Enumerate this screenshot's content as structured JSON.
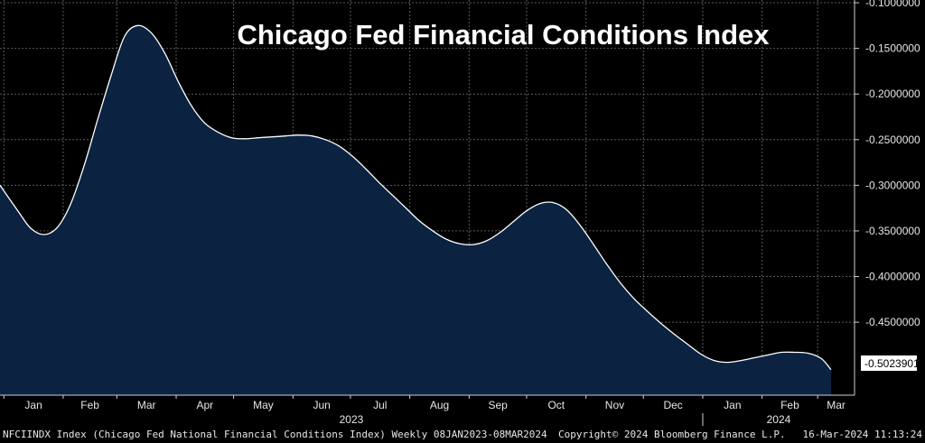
{
  "chart_data": {
    "type": "area",
    "title": "Chicago Fed Financial Conditions Index",
    "ylim": [
      -0.53,
      -0.097
    ],
    "y_ticks": [
      "-0.1000000",
      "-0.1500000",
      "-0.2000000",
      "-0.2500000",
      "-0.3000000",
      "-0.3500000",
      "-0.4000000",
      "-0.4500000"
    ],
    "last_value_label": "-0.5023901",
    "months": [
      {
        "label": "Jan",
        "m": 0
      },
      {
        "label": "Feb",
        "m": 1
      },
      {
        "label": "Mar",
        "m": 2
      },
      {
        "label": "Apr",
        "m": 3
      },
      {
        "label": "May",
        "m": 4
      },
      {
        "label": "Jun",
        "m": 5
      },
      {
        "label": "Jul",
        "m": 6
      },
      {
        "label": "Aug",
        "m": 7
      },
      {
        "label": "Sep",
        "m": 8
      },
      {
        "label": "Oct",
        "m": 9
      },
      {
        "label": "Nov",
        "m": 10
      },
      {
        "label": "Dec",
        "m": 11
      },
      {
        "label": "Jan",
        "m": 12
      },
      {
        "label": "Feb",
        "m": 13
      },
      {
        "label": "Mar",
        "m": 14
      }
    ],
    "years": [
      {
        "label": "2023",
        "m": 5.5
      },
      {
        "label": "2024",
        "m": 13.5
      }
    ],
    "series": [
      {
        "x": [
          "2022-12-30",
          "2023-01-08",
          "2023-01-15",
          "2023-01-22",
          "2023-01-29",
          "2023-02-05",
          "2023-02-12",
          "2023-02-19",
          "2023-02-26",
          "2023-03-05",
          "2023-03-12",
          "2023-03-19",
          "2023-03-26",
          "2023-04-02",
          "2023-04-09",
          "2023-04-16",
          "2023-04-23",
          "2023-04-30",
          "2023-05-07",
          "2023-05-14",
          "2023-05-21",
          "2023-05-28",
          "2023-06-04",
          "2023-06-11",
          "2023-06-18",
          "2023-06-25",
          "2023-07-02",
          "2023-07-09",
          "2023-07-16",
          "2023-07-23",
          "2023-07-30",
          "2023-08-06",
          "2023-08-13",
          "2023-08-20",
          "2023-08-27",
          "2023-09-03",
          "2023-09-10",
          "2023-09-17",
          "2023-09-24",
          "2023-10-01",
          "2023-10-08",
          "2023-10-15",
          "2023-10-22",
          "2023-10-29",
          "2023-11-05",
          "2023-11-12",
          "2023-11-19",
          "2023-11-26",
          "2023-12-03",
          "2023-12-10",
          "2023-12-17",
          "2023-12-24",
          "2023-12-31",
          "2024-01-07",
          "2024-01-14",
          "2024-01-21",
          "2024-01-28",
          "2024-02-04",
          "2024-02-11",
          "2024-02-18",
          "2024-02-25",
          "2024-03-03",
          "2024-03-08"
        ],
        "values": [
          -0.3,
          -0.327,
          -0.347,
          -0.354,
          -0.346,
          -0.32,
          -0.278,
          -0.228,
          -0.18,
          -0.137,
          -0.125,
          -0.133,
          -0.155,
          -0.186,
          -0.213,
          -0.232,
          -0.242,
          -0.248,
          -0.249,
          -0.248,
          -0.247,
          -0.246,
          -0.245,
          -0.246,
          -0.25,
          -0.257,
          -0.268,
          -0.282,
          -0.297,
          -0.311,
          -0.325,
          -0.339,
          -0.35,
          -0.359,
          -0.364,
          -0.365,
          -0.361,
          -0.352,
          -0.34,
          -0.328,
          -0.32,
          -0.319,
          -0.327,
          -0.344,
          -0.365,
          -0.387,
          -0.407,
          -0.424,
          -0.438,
          -0.451,
          -0.463,
          -0.474,
          -0.485,
          -0.492,
          -0.494,
          -0.492,
          -0.489,
          -0.486,
          -0.483,
          -0.483,
          -0.484,
          -0.49,
          -0.502
        ]
      }
    ],
    "footer_left": "NFCIINDX Index (Chicago Fed National Financial Conditions Index)  Weekly 08JAN2023-08MAR2024",
    "footer_mid": "Copyright© 2024 Bloomberg Finance L.P.",
    "footer_right": "16-Mar-2024 11:13:24",
    "colors": {
      "background": "#000000",
      "area_fill": "#0b2341",
      "line": "#ffffff",
      "grid": "#5a5a5a",
      "last_label_bg": "#ffffff"
    }
  }
}
